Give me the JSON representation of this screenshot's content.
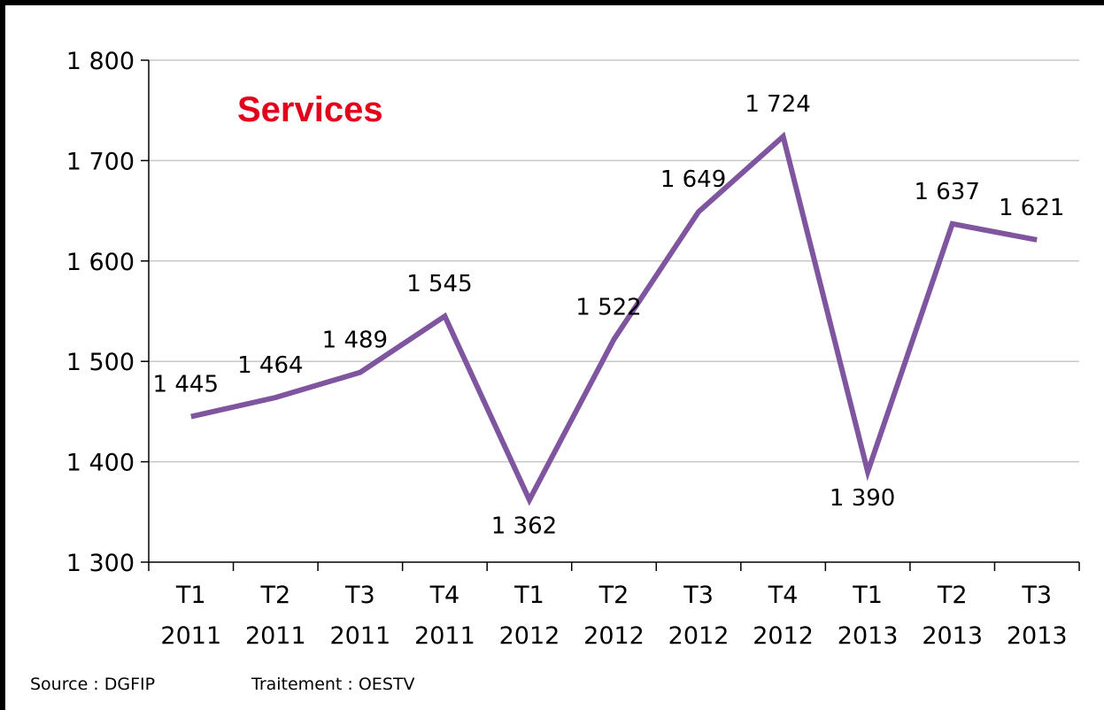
{
  "chart_data": {
    "type": "line",
    "title": "Services",
    "categories": [
      [
        "T1",
        "2011"
      ],
      [
        "T2",
        "2011"
      ],
      [
        "T3",
        "2011"
      ],
      [
        "T4",
        "2011"
      ],
      [
        "T1",
        "2012"
      ],
      [
        "T2",
        "2012"
      ],
      [
        "T3",
        "2012"
      ],
      [
        "T4",
        "2012"
      ],
      [
        "T1",
        "2013"
      ],
      [
        "T2",
        "2013"
      ],
      [
        "T3",
        "2013"
      ]
    ],
    "series": [
      {
        "values": [
          1445,
          1464,
          1489,
          1545,
          1362,
          1522,
          1649,
          1724,
          1390,
          1637,
          1621
        ],
        "labels": [
          "1 445",
          "1 464",
          "1 489",
          "1 545",
          "1 362",
          "1 522",
          "1 649",
          "1 724",
          "1 390",
          "1 637",
          "1 621"
        ],
        "color": "#8055a0"
      }
    ],
    "ylim": [
      1300,
      1800
    ],
    "yticks": [
      1300,
      1400,
      1500,
      1600,
      1700,
      1800
    ],
    "ytick_labels": [
      "1 300",
      "1 400",
      "1 500",
      "1 600",
      "1 700",
      "1 800"
    ],
    "grid": true,
    "legend": "none",
    "gridline_color": "#c8c8c8",
    "title_color": "#e3001b"
  },
  "footer": {
    "source": "Source : DGFIP",
    "treatment": "Traitement : OESTV"
  }
}
